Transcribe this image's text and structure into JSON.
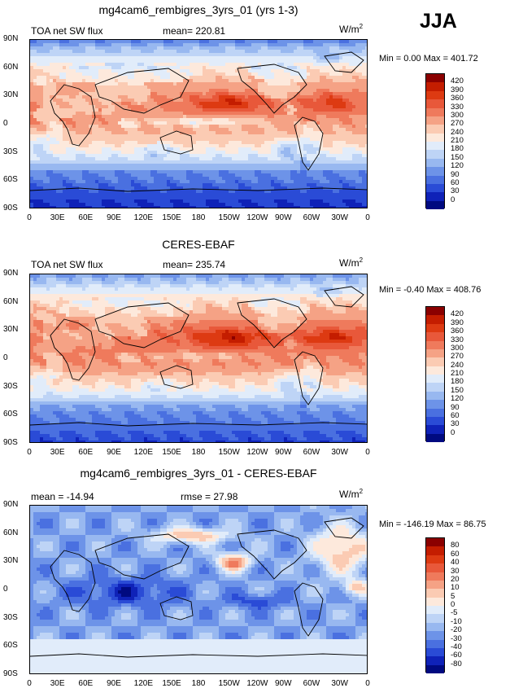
{
  "season": "JJA",
  "units_label": "W/m",
  "units_sup": "2",
  "panels": [
    {
      "title": "mg4cam6_rembigres_3yrs_01 (yrs 1-3)",
      "left_label": "TOA net SW flux",
      "mid_label": "mean=  220.81",
      "minmax": "Min =    0.00 Max = 401.72",
      "cbar_labels": [
        "420",
        "390",
        "360",
        "330",
        "300",
        "270",
        "240",
        "210",
        "180",
        "150",
        "120",
        "90",
        "60",
        "30",
        "0"
      ],
      "cbar_colors": [
        "#8b0000",
        "#c41d00",
        "#dd3a12",
        "#e8583a",
        "#ef7a5c",
        "#f5a285",
        "#fbcbb3",
        "#fde9dc",
        "#e1ecfa",
        "#bed4f6",
        "#98b8f0",
        "#6d93e8",
        "#4a70e0",
        "#2a4bd6",
        "#0f22b8",
        "#000a80"
      ]
    },
    {
      "title": "CERES-EBAF",
      "left_label": "TOA net SW flux",
      "mid_label": "mean=  235.74",
      "minmax": "Min =  -0.40 Max = 408.76",
      "cbar_labels": [
        "420",
        "390",
        "360",
        "330",
        "300",
        "270",
        "240",
        "210",
        "180",
        "150",
        "120",
        "90",
        "60",
        "30",
        "0"
      ],
      "cbar_colors": [
        "#8b0000",
        "#c41d00",
        "#dd3a12",
        "#e8583a",
        "#ef7a5c",
        "#f5a285",
        "#fbcbb3",
        "#fde9dc",
        "#e1ecfa",
        "#bed4f6",
        "#98b8f0",
        "#6d93e8",
        "#4a70e0",
        "#2a4bd6",
        "#0f22b8",
        "#000a80"
      ]
    },
    {
      "title": "mg4cam6_rembigres_3yrs_01 - CERES-EBAF",
      "left_label": "mean =  -14.94",
      "mid_label": "rmse =   27.98",
      "minmax": "Min = -146.19 Max =  86.75",
      "cbar_labels": [
        "80",
        "60",
        "40",
        "30",
        "20",
        "10",
        "5",
        "0",
        "-5",
        "-10",
        "-20",
        "-30",
        "-40",
        "-60",
        "-80"
      ],
      "cbar_colors": [
        "#8b0000",
        "#c41d00",
        "#dd3a12",
        "#e8583a",
        "#ef7a5c",
        "#f5a285",
        "#fbcbb3",
        "#fde9dc",
        "#e1ecfa",
        "#bed4f6",
        "#98b8f0",
        "#6d93e8",
        "#4a70e0",
        "#2a4bd6",
        "#0f22b8",
        "#000a80"
      ]
    }
  ],
  "lat_ticks": [
    "90N",
    "60N",
    "30N",
    "0",
    "30S",
    "60S",
    "90S"
  ],
  "lon_ticks": [
    "0",
    "30E",
    "60E",
    "90E",
    "120E",
    "150E",
    "180",
    "150W",
    "120W",
    "90W",
    "60W",
    "30W",
    "0"
  ]
}
